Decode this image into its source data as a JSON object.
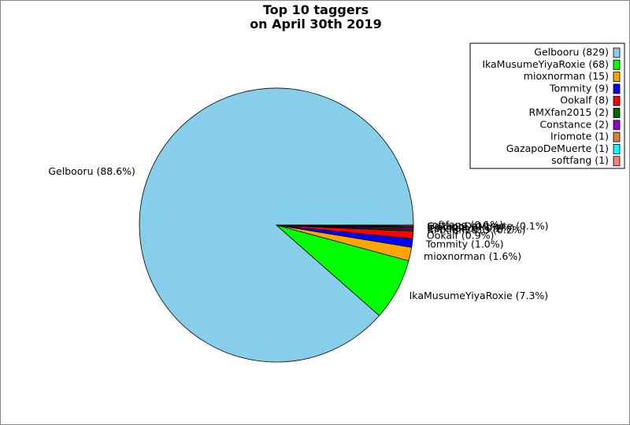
{
  "chart_data": {
    "type": "pie",
    "title": "Top 10 taggers\non April 30th 2019",
    "categories": [
      "Gelbooru (829)",
      "IkaMusumeYiyaRoxie (68)",
      "mioxnorman (15)",
      "Tommity (9)",
      "Ookalf (8)",
      "RMXfan2015 (2)",
      "Constance (2)",
      "Iriomote (1)",
      "GazapoDeMuerte (1)",
      "softfang (1)"
    ],
    "values": [
      88.6,
      7.3,
      1.6,
      1.0,
      0.9,
      0.2,
      0.2,
      0.1,
      0.1,
      0.1
    ],
    "value_labels": [
      "Gelbooru (88.6%)",
      "IkaMusumeYiyaRoxie (7.3%)",
      "mioxnorman (1.6%)",
      "Tommity (1.0%)",
      "Ookalf (0.9%)",
      "RMXfan2015 (0.2%)",
      "Constance (0.2%)",
      "Iriomote (0.1%)",
      "GazapoDeMuerte (0.1%)",
      "softfang (0.1%)"
    ],
    "colors": [
      "#87ceeb",
      "#00ff00",
      "#ffa500",
      "#0000ff",
      "#ff0000",
      "#006400",
      "#9400d3",
      "#cd853f",
      "#00ffff",
      "#fa8072"
    ],
    "legend": "upper right"
  }
}
